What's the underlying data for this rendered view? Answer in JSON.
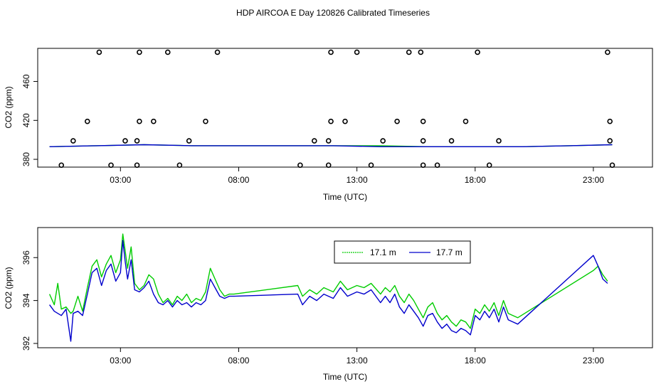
{
  "title": "HDP AIRCOA E  Day 120826  Calibrated Timeseries",
  "colors": {
    "green": "#00cc00",
    "blue": "#0000cc",
    "axis": "#000000"
  },
  "chart_data": [
    {
      "type": "scatter",
      "xlabel": "Time (UTC)",
      "ylabel": "CO2 (ppm)",
      "xlim": [
        -0.5,
        25.5
      ],
      "ylim": [
        372,
        494
      ],
      "xticks": [
        3,
        8,
        13,
        18,
        23
      ],
      "xticklabels": [
        "03:00",
        "08:00",
        "13:00",
        "18:00",
        "23:00"
      ],
      "yticks": [
        380,
        420,
        460
      ],
      "yticklabels": [
        "380",
        "420",
        "460"
      ],
      "series": [
        {
          "name": "outliers",
          "marker": "open-circle",
          "points": [
            [
              2.1,
              490
            ],
            [
              3.8,
              490
            ],
            [
              5.0,
              490
            ],
            [
              7.1,
              490
            ],
            [
              11.9,
              490
            ],
            [
              13.0,
              490
            ],
            [
              15.2,
              490
            ],
            [
              15.7,
              490
            ],
            [
              18.1,
              490
            ],
            [
              23.6,
              490
            ],
            [
              1.6,
              419
            ],
            [
              3.8,
              419
            ],
            [
              4.4,
              419
            ],
            [
              6.6,
              419
            ],
            [
              11.9,
              419
            ],
            [
              12.5,
              419
            ],
            [
              14.7,
              419
            ],
            [
              15.8,
              419
            ],
            [
              17.6,
              419
            ],
            [
              23.7,
              419
            ],
            [
              1.0,
              399
            ],
            [
              3.2,
              399
            ],
            [
              3.7,
              399
            ],
            [
              5.9,
              399
            ],
            [
              11.2,
              399
            ],
            [
              11.8,
              399
            ],
            [
              14.1,
              399
            ],
            [
              15.8,
              399
            ],
            [
              17.0,
              399
            ],
            [
              19.0,
              399
            ],
            [
              23.7,
              399
            ],
            [
              0.5,
              374
            ],
            [
              2.6,
              374
            ],
            [
              3.7,
              374
            ],
            [
              5.5,
              374
            ],
            [
              10.6,
              374
            ],
            [
              11.8,
              374
            ],
            [
              13.6,
              374
            ],
            [
              15.8,
              374
            ],
            [
              16.4,
              374
            ],
            [
              18.6,
              374
            ],
            [
              23.8,
              374
            ]
          ]
        },
        {
          "name": "17.1 m",
          "color": "#00cc00",
          "x": [
            0.0,
            2.0,
            4.0,
            6.0,
            8.0,
            10.0,
            12.0,
            14.0,
            16.0,
            18.0,
            20.0,
            22.0,
            23.8
          ],
          "y": [
            393,
            394,
            395,
            394,
            394,
            394,
            394,
            394,
            393,
            393,
            393,
            394,
            395
          ]
        },
        {
          "name": "17.7 m",
          "color": "#0000cc",
          "x": [
            0.0,
            2.0,
            4.0,
            6.0,
            8.0,
            10.0,
            12.0,
            14.0,
            16.0,
            18.0,
            20.0,
            22.0,
            23.8
          ],
          "y": [
            393,
            394,
            395,
            394,
            394,
            394,
            394,
            393,
            393,
            393,
            393,
            394,
            395
          ]
        }
      ]
    },
    {
      "type": "line",
      "xlabel": "Time (UTC)",
      "ylabel": "CO2 (ppm)",
      "xlim": [
        -0.5,
        25.5
      ],
      "ylim": [
        391.8,
        397.4
      ],
      "xticks": [
        3,
        8,
        13,
        18,
        23
      ],
      "xticklabels": [
        "03:00",
        "08:00",
        "13:00",
        "18:00",
        "23:00"
      ],
      "yticks": [
        392,
        394,
        396
      ],
      "yticklabels": [
        "392",
        "394",
        "396"
      ],
      "legend": {
        "position": "top-center"
      },
      "series": [
        {
          "name": "17.1 m",
          "color": "#00cc00",
          "x": [
            0.0,
            0.2,
            0.35,
            0.5,
            0.7,
            0.9,
            1.0,
            1.2,
            1.4,
            1.6,
            1.8,
            2.0,
            2.2,
            2.4,
            2.6,
            2.8,
            3.0,
            3.1,
            3.2,
            3.3,
            3.45,
            3.6,
            3.8,
            4.0,
            4.2,
            4.4,
            4.6,
            4.8,
            5.0,
            5.2,
            5.4,
            5.6,
            5.8,
            6.0,
            6.2,
            6.4,
            6.6,
            6.8,
            7.0,
            7.2,
            7.4,
            7.6,
            7.8,
            10.5,
            10.7,
            11.0,
            11.3,
            11.6,
            12.0,
            12.3,
            12.6,
            13.0,
            13.3,
            13.6,
            14.0,
            14.2,
            14.4,
            14.6,
            14.8,
            15.0,
            15.2,
            15.4,
            15.6,
            15.8,
            16.0,
            16.2,
            16.4,
            16.6,
            16.8,
            17.0,
            17.2,
            17.4,
            17.6,
            17.8,
            18.0,
            18.2,
            18.4,
            18.6,
            18.8,
            19.0,
            19.2,
            19.4,
            19.6,
            19.8,
            23.0,
            23.2,
            23.4,
            23.6
          ],
          "y": [
            394.3,
            393.8,
            394.8,
            393.6,
            393.7,
            393.4,
            393.5,
            394.2,
            393.5,
            394.6,
            395.6,
            395.9,
            395.1,
            395.7,
            396.1,
            395.3,
            395.9,
            397.1,
            396.3,
            395.5,
            396.5,
            394.8,
            394.5,
            394.7,
            395.2,
            395.0,
            394.3,
            393.9,
            394.1,
            393.8,
            394.2,
            394.0,
            394.3,
            393.9,
            394.1,
            394.0,
            394.4,
            395.5,
            395.0,
            394.5,
            394.2,
            394.3,
            394.3,
            394.7,
            394.2,
            394.5,
            394.3,
            394.6,
            394.4,
            394.9,
            394.5,
            394.7,
            394.6,
            394.8,
            394.3,
            394.6,
            394.4,
            394.7,
            394.2,
            393.9,
            394.3,
            394.0,
            393.6,
            393.2,
            393.7,
            393.9,
            393.4,
            393.1,
            393.3,
            393.0,
            392.8,
            393.1,
            393.0,
            392.7,
            393.6,
            393.4,
            393.8,
            393.5,
            393.9,
            393.3,
            394.0,
            393.4,
            393.3,
            393.2,
            395.4,
            395.6,
            395.2,
            394.9
          ]
        },
        {
          "name": "17.7 m",
          "color": "#0000cc",
          "x": [
            0.0,
            0.2,
            0.35,
            0.5,
            0.7,
            0.9,
            1.0,
            1.2,
            1.4,
            1.6,
            1.8,
            2.0,
            2.2,
            2.4,
            2.6,
            2.8,
            3.0,
            3.1,
            3.2,
            3.3,
            3.45,
            3.6,
            3.8,
            4.0,
            4.2,
            4.4,
            4.6,
            4.8,
            5.0,
            5.2,
            5.4,
            5.6,
            5.8,
            6.0,
            6.2,
            6.4,
            6.6,
            6.8,
            7.0,
            7.2,
            7.4,
            7.6,
            7.8,
            10.5,
            10.7,
            11.0,
            11.3,
            11.6,
            12.0,
            12.3,
            12.6,
            13.0,
            13.3,
            13.6,
            14.0,
            14.2,
            14.4,
            14.6,
            14.8,
            15.0,
            15.2,
            15.4,
            15.6,
            15.8,
            16.0,
            16.2,
            16.4,
            16.6,
            16.8,
            17.0,
            17.2,
            17.4,
            17.6,
            17.8,
            18.0,
            18.2,
            18.4,
            18.6,
            18.8,
            19.0,
            19.2,
            19.4,
            19.6,
            19.8,
            23.0,
            23.2,
            23.4,
            23.6
          ],
          "y": [
            393.8,
            393.5,
            393.4,
            393.3,
            393.6,
            392.1,
            393.4,
            393.5,
            393.3,
            394.3,
            395.3,
            395.5,
            394.7,
            395.4,
            395.7,
            394.9,
            395.3,
            396.8,
            395.8,
            395.0,
            395.9,
            394.5,
            394.4,
            394.6,
            394.9,
            394.3,
            393.9,
            393.8,
            394.0,
            393.7,
            394.0,
            393.8,
            393.9,
            393.7,
            393.9,
            393.8,
            394.0,
            395.0,
            394.6,
            394.2,
            394.1,
            394.2,
            394.2,
            394.3,
            393.8,
            394.2,
            394.0,
            394.3,
            394.1,
            394.6,
            394.2,
            394.4,
            394.3,
            394.5,
            393.9,
            394.2,
            393.9,
            394.3,
            393.7,
            393.4,
            393.8,
            393.5,
            393.2,
            392.8,
            393.3,
            393.4,
            393.0,
            392.7,
            392.9,
            392.6,
            392.5,
            392.7,
            392.6,
            392.4,
            393.3,
            393.1,
            393.5,
            393.2,
            393.6,
            393.0,
            393.7,
            393.1,
            393.0,
            392.9,
            396.1,
            395.6,
            395.0,
            394.8
          ]
        }
      ]
    }
  ]
}
